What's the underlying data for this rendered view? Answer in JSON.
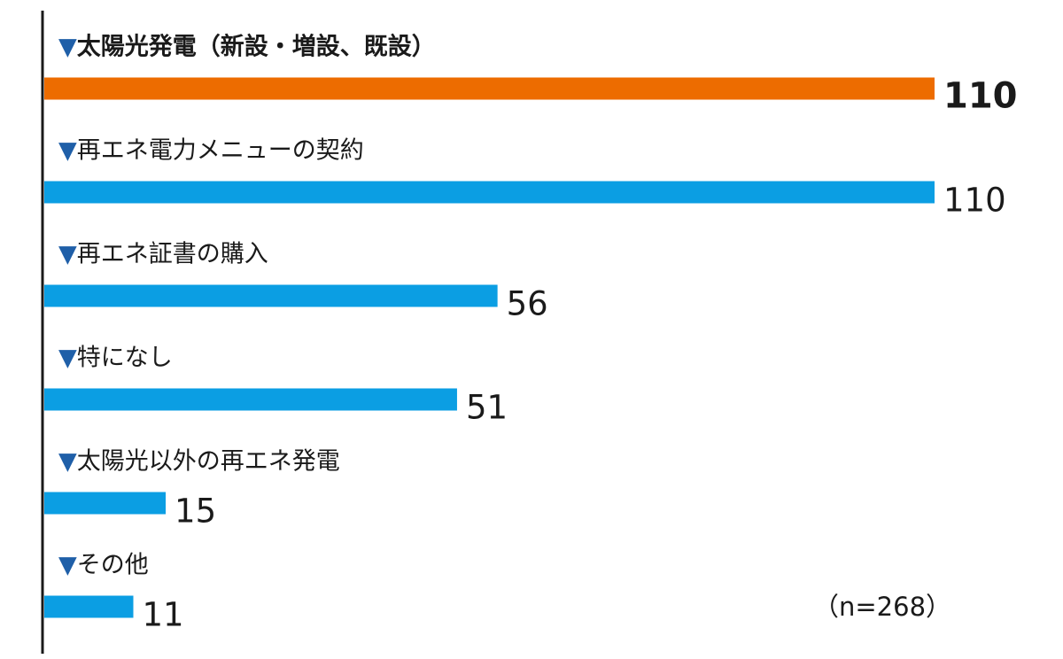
{
  "chart_data": {
    "type": "bar",
    "orientation": "horizontal",
    "categories": [
      "太陽光発電（新設・増設、既設）",
      "再エネ電力メニューの契約",
      "再エネ証書の購入",
      "特になし",
      "太陽光以外の再エネ発電",
      "その他"
    ],
    "values": [
      110,
      110,
      56,
      51,
      15,
      11
    ],
    "highlight_index": 0,
    "category_marker": "▼",
    "note": "（n=268）",
    "xlim": [
      0,
      110
    ],
    "grid": false,
    "legend": "none",
    "colors": {
      "highlight": "#ed6c00",
      "bar": "#0b9ee3",
      "axis": "#1a1a1a",
      "marker": "#1f5fa8"
    }
  }
}
